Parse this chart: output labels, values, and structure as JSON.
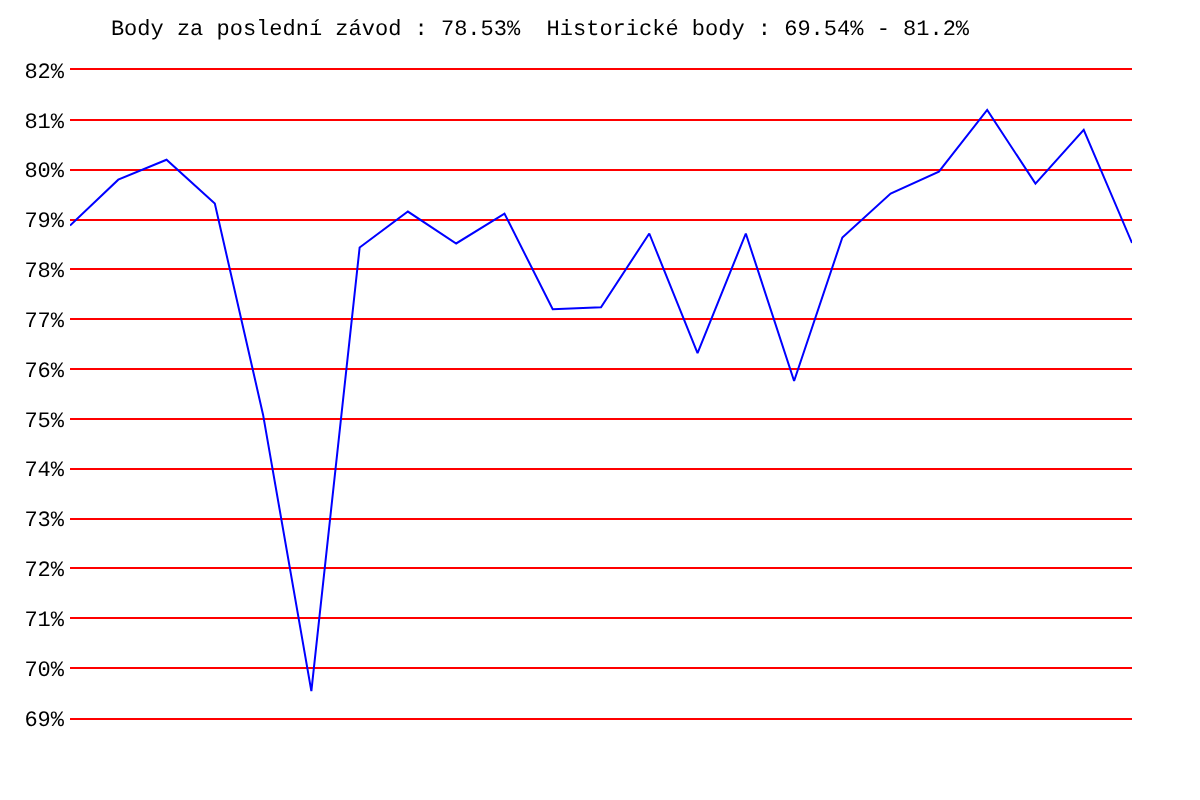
{
  "chart_data": {
    "type": "line",
    "title": "Body za poslední závod : 78.53%  Historické body : 69.54% - 81.2%",
    "categories": [
      null,
      null,
      null,
      null,
      null,
      null,
      null,
      null,
      null,
      null,
      null,
      null,
      null,
      null,
      null,
      null,
      null,
      null,
      null,
      null,
      null,
      null,
      null
    ],
    "series": [
      {
        "color": "#0000ff",
        "values": [
          78.88,
          79.8,
          80.2,
          79.32,
          75.08,
          69.54,
          78.44,
          79.16,
          78.52,
          79.12,
          77.2,
          77.24,
          78.72,
          76.32,
          78.72,
          75.76,
          78.64,
          79.52,
          79.96,
          81.2,
          79.72,
          80.8,
          78.53
        ]
      }
    ],
    "ylim": [
      69,
      82
    ],
    "yticks": [
      {
        "value": 69,
        "label": "69%"
      },
      {
        "value": 70,
        "label": "70%"
      },
      {
        "value": 71,
        "label": "71%"
      },
      {
        "value": 72,
        "label": "72%"
      },
      {
        "value": 73,
        "label": "73%"
      },
      {
        "value": 74,
        "label": "74%"
      },
      {
        "value": 75,
        "label": "75%"
      },
      {
        "value": 76,
        "label": "76%"
      },
      {
        "value": 77,
        "label": "77%"
      },
      {
        "value": 78,
        "label": "78%"
      },
      {
        "value": 79,
        "label": "79%"
      },
      {
        "value": 80,
        "label": "80%"
      },
      {
        "value": 81,
        "label": "81%"
      },
      {
        "value": 82,
        "label": "82%"
      }
    ],
    "grid": "y",
    "legend": false,
    "marker": "none",
    "line_style": "solid"
  }
}
